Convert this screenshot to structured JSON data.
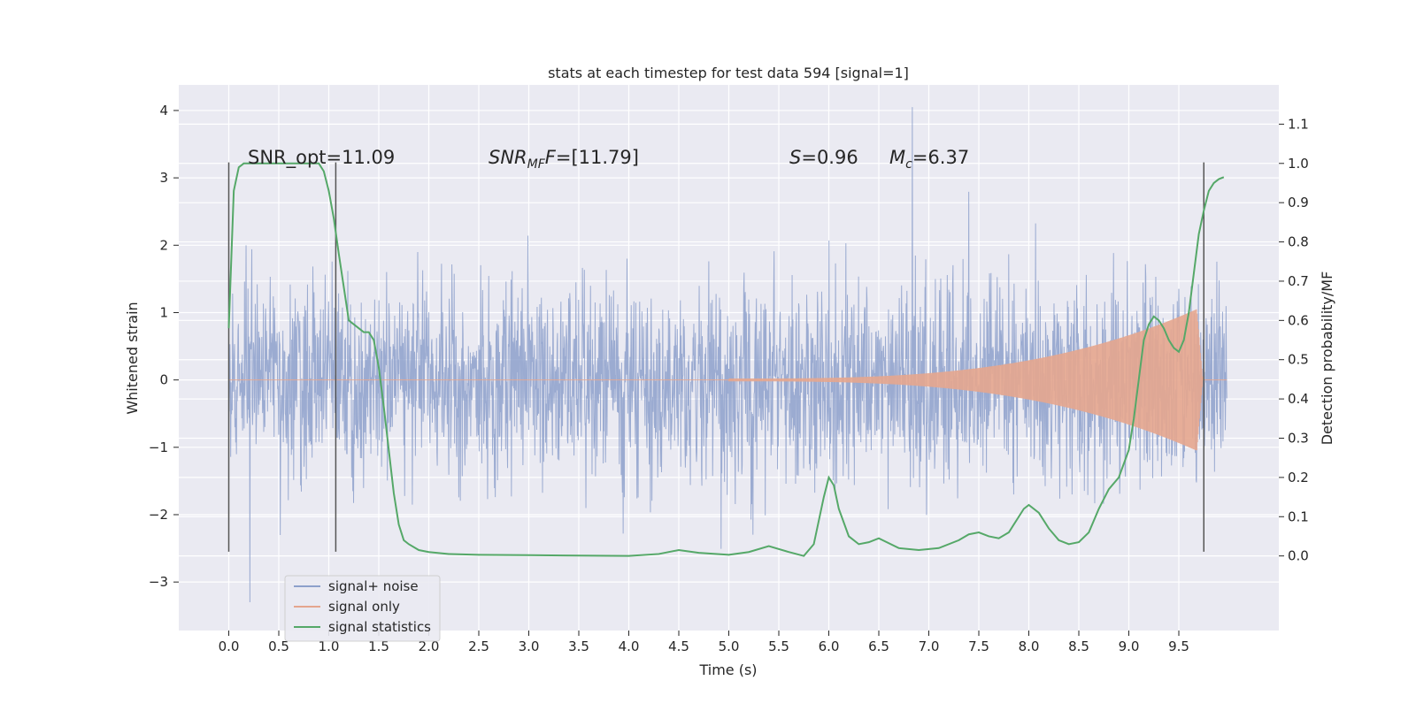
{
  "chart_data": {
    "type": "line",
    "title": "stats at each timestep for test data 594 [signal=1]",
    "xlabel": "Time (s)",
    "ylabel_left": "Whitened strain",
    "ylabel_right": "Detection probability/MF",
    "xlim": [
      -0.5,
      10.5
    ],
    "ylim_left": [
      -3.72,
      4.38
    ],
    "ylim_right": [
      -0.19,
      1.2
    ],
    "xticks": [
      0,
      0.5,
      1,
      1.5,
      2,
      2.5,
      3,
      3.5,
      4,
      4.5,
      5,
      5.5,
      6,
      6.5,
      7,
      7.5,
      8,
      8.5,
      9,
      9.5
    ],
    "xtick_labels": [
      "0.0",
      "0.5",
      "1.0",
      "1.5",
      "2.0",
      "2.5",
      "3.0",
      "3.5",
      "4.0",
      "4.5",
      "5.0",
      "5.5",
      "6.0",
      "6.5",
      "7.0",
      "7.5",
      "8.0",
      "8.5",
      "9.0",
      "9.5"
    ],
    "yticks_left": [
      -3,
      -2,
      -1,
      0,
      1,
      2,
      3,
      4
    ],
    "ytick_labels_left": [
      "−3",
      "−2",
      "−1",
      "0",
      "1",
      "2",
      "3",
      "4"
    ],
    "yticks_right": [
      0.0,
      0.1,
      0.2,
      0.3,
      0.4,
      0.5,
      0.6,
      0.7,
      0.8,
      0.9,
      1.0,
      1.1
    ],
    "ytick_labels_right": [
      "0.0",
      "0.1",
      "0.2",
      "0.3",
      "0.4",
      "0.5",
      "0.6",
      "0.7",
      "0.8",
      "0.9",
      "1.0",
      "1.1"
    ],
    "grid": true,
    "legend_position": "lower-left",
    "annotations": [
      {
        "text": "SNR_opt=11.09",
        "x": 0.2,
        "y": 3.23
      },
      {
        "text": "SNR_MF=[11.79]",
        "x": 2.6,
        "y": 3.23
      },
      {
        "text": "S=0.96",
        "x": 5.6,
        "y": 3.23
      },
      {
        "text": "M_c=6.37",
        "x": 6.6,
        "y": 3.23
      }
    ],
    "vertical_markers": [
      {
        "x": 0.0,
        "y_range": [
          -2.55,
          3.23
        ]
      },
      {
        "x": 1.07,
        "y_range": [
          -2.55,
          3.23
        ]
      },
      {
        "x": 9.75,
        "y_range": [
          -2.55,
          3.23
        ]
      }
    ],
    "series": [
      {
        "name": "signal+ noise",
        "axis": "left",
        "color": "#8da0cb",
        "description_values": {
          "x_range": [
            0,
            9.98
          ],
          "typical_amplitude": 1.5,
          "max": 4.05,
          "min": -3.3
        }
      },
      {
        "name": "signal only",
        "axis": "left",
        "color": "#e5a68e",
        "description_values": {
          "x_range": [
            0,
            9.98
          ],
          "chirp_start": 5.0,
          "peak_time": 9.68,
          "peak_amplitude": 1.05,
          "peak_min": -1.3
        }
      },
      {
        "name": "signal statistics",
        "axis": "right",
        "color": "#55a868",
        "x": [
          0.0,
          0.05,
          0.1,
          0.15,
          0.2,
          0.3,
          0.5,
          0.7,
          0.9,
          0.95,
          1.0,
          1.05,
          1.1,
          1.2,
          1.3,
          1.35,
          1.4,
          1.45,
          1.5,
          1.55,
          1.6,
          1.65,
          1.7,
          1.75,
          1.8,
          1.9,
          2.0,
          2.2,
          2.5,
          3.0,
          3.5,
          4.0,
          4.3,
          4.5,
          4.7,
          5.0,
          5.2,
          5.4,
          5.6,
          5.75,
          5.85,
          5.95,
          6.0,
          6.05,
          6.1,
          6.2,
          6.3,
          6.4,
          6.5,
          6.7,
          6.9,
          7.1,
          7.3,
          7.4,
          7.5,
          7.6,
          7.7,
          7.8,
          7.9,
          7.95,
          8.0,
          8.1,
          8.2,
          8.3,
          8.4,
          8.5,
          8.6,
          8.7,
          8.8,
          8.9,
          9.0,
          9.05,
          9.1,
          9.15,
          9.2,
          9.25,
          9.3,
          9.35,
          9.4,
          9.45,
          9.5,
          9.55,
          9.6,
          9.65,
          9.7,
          9.75,
          9.8,
          9.85,
          9.9,
          9.95
        ],
        "values": [
          0.58,
          0.93,
          0.99,
          1.0,
          1.0,
          1.0,
          1.0,
          1.0,
          1.0,
          0.98,
          0.93,
          0.86,
          0.77,
          0.6,
          0.58,
          0.57,
          0.57,
          0.55,
          0.48,
          0.38,
          0.27,
          0.16,
          0.08,
          0.04,
          0.03,
          0.015,
          0.01,
          0.005,
          0.003,
          0.002,
          0.001,
          0.0,
          0.005,
          0.015,
          0.008,
          0.003,
          0.01,
          0.025,
          0.01,
          0.0,
          0.03,
          0.15,
          0.2,
          0.18,
          0.12,
          0.05,
          0.03,
          0.035,
          0.045,
          0.02,
          0.015,
          0.02,
          0.04,
          0.055,
          0.06,
          0.05,
          0.045,
          0.06,
          0.1,
          0.12,
          0.13,
          0.11,
          0.07,
          0.04,
          0.03,
          0.035,
          0.06,
          0.12,
          0.17,
          0.2,
          0.27,
          0.35,
          0.45,
          0.55,
          0.59,
          0.61,
          0.6,
          0.58,
          0.55,
          0.53,
          0.52,
          0.55,
          0.62,
          0.72,
          0.82,
          0.88,
          0.93,
          0.95,
          0.96,
          0.965
        ]
      }
    ]
  }
}
